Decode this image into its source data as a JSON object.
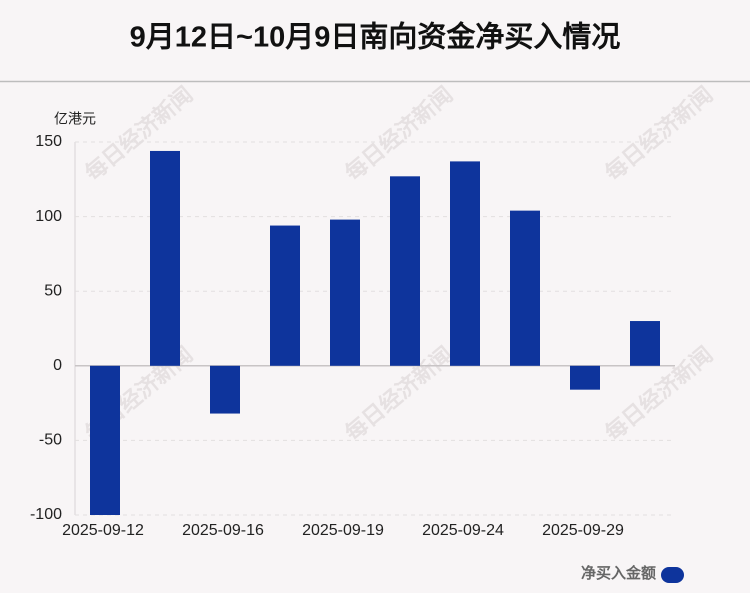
{
  "chart_data": {
    "type": "bar",
    "title": "9月12日~10月9日南向资金净买入情况",
    "y_unit": "亿港元",
    "watermark": "每日经济新闻",
    "categories": [
      "2025-09-12",
      null,
      "2025-09-16",
      null,
      "2025-09-19",
      null,
      "2025-09-24",
      null,
      "2025-09-29",
      null
    ],
    "series": [
      {
        "name": "净买入金额",
        "color": "#0e349c",
        "values": [
          -100,
          144,
          -32,
          94,
          98,
          127,
          137,
          104,
          -16,
          30
        ]
      }
    ],
    "ylim": [
      -100,
      150
    ],
    "yticks": [
      -100,
      -50,
      0,
      50,
      100,
      150
    ],
    "grid": true,
    "legend": "bottom-right"
  }
}
